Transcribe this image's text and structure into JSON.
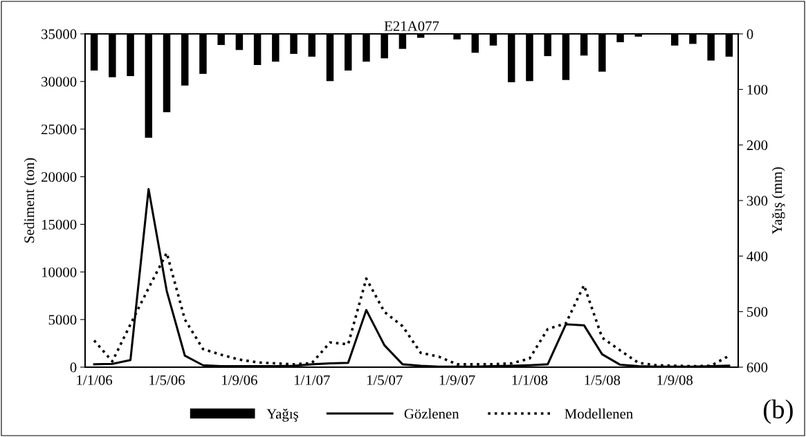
{
  "chart_data": {
    "type": "line",
    "title": "E21A077",
    "ylabel": "Sediment (ton)",
    "y2label": "Yağış (mm)",
    "categories": [
      "1/1/06",
      null,
      null,
      null,
      "1/5/06",
      null,
      null,
      null,
      "1/9/06",
      null,
      null,
      null,
      "1/1/07",
      null,
      null,
      null,
      "1/5/07",
      null,
      null,
      null,
      "1/9/07",
      null,
      null,
      null,
      "1/1/08",
      null,
      null,
      null,
      "1/5/08",
      null,
      null,
      null,
      "1/9/08",
      null,
      null,
      null
    ],
    "series": [
      {
        "name": "Yağış",
        "type": "bar",
        "axis": "y2",
        "color": "#000000",
        "values": [
          66,
          78,
          76,
          187,
          141,
          93,
          72,
          20,
          29,
          56,
          50,
          36,
          41,
          85,
          66,
          50,
          44,
          27,
          7,
          0,
          10,
          34,
          21,
          87,
          85,
          40,
          83,
          39,
          68,
          15,
          5,
          1,
          21,
          18,
          48,
          41
        ]
      },
      {
        "name": "Gözlenen",
        "line_style": "solid",
        "color": "#000000",
        "values": [
          300,
          350,
          750,
          18700,
          8000,
          1200,
          200,
          100,
          100,
          100,
          100,
          150,
          300,
          400,
          450,
          6000,
          2300,
          300,
          150,
          50,
          50,
          50,
          100,
          150,
          200,
          300,
          4500,
          4400,
          1350,
          250,
          100,
          50,
          50,
          50,
          100,
          150
        ]
      },
      {
        "name": "Modellenen",
        "line_style": "dotted",
        "color": "#000000",
        "values": [
          2800,
          600,
          4500,
          8300,
          12000,
          5000,
          1900,
          1300,
          800,
          500,
          400,
          300,
          430,
          2600,
          2400,
          9300,
          5800,
          4300,
          1500,
          1100,
          300,
          300,
          300,
          400,
          900,
          4000,
          4600,
          8600,
          3100,
          1750,
          450,
          200,
          150,
          100,
          150,
          1200
        ]
      }
    ],
    "ylim": [
      0,
      35000
    ],
    "yticks": [
      0,
      5000,
      10000,
      15000,
      20000,
      25000,
      30000,
      35000
    ],
    "y2lim": [
      600,
      0
    ],
    "y2ticks": [
      0,
      100,
      200,
      300,
      400,
      500,
      600
    ],
    "legend": "bottom",
    "grid": false,
    "marker": "none",
    "annotations": [
      "(b)"
    ]
  }
}
